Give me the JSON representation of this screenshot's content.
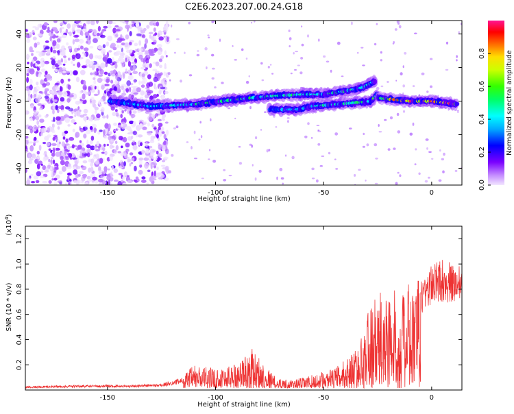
{
  "title": "C2E6.2023.207.00.24.G18",
  "chart_data": [
    {
      "type": "heatmap",
      "xlabel": "Height of straight line (km)",
      "ylabel": "Frequency (Hz)",
      "xlim": [
        -188,
        14
      ],
      "ylim": [
        -50,
        48
      ],
      "xticks": [
        -150,
        -100,
        -50,
        0
      ],
      "yticks": [
        -40,
        -20,
        0,
        20,
        40
      ],
      "colorbar": {
        "label": "Normalized spectral amplitude",
        "range": [
          0,
          1
        ],
        "ticks": [
          "0.0",
          "0.2",
          "0.4",
          "0.6",
          "0.8"
        ],
        "tick_values": [
          0.0,
          0.2,
          0.4,
          0.6,
          0.8
        ]
      },
      "traces": [
        {
          "x": [
            -149,
            -130,
            -110,
            -90,
            -75,
            -60,
            -50,
            -40,
            -32,
            -26
          ],
          "y": [
            0,
            -3,
            -2,
            1,
            3,
            4,
            4,
            6,
            8,
            12
          ],
          "amplitude": [
            0.35,
            0.4,
            0.5,
            0.55,
            0.5,
            0.5,
            0.55,
            0.55,
            0.5,
            0.4
          ]
        },
        {
          "x": [
            -75,
            -62,
            -55,
            -45,
            -35,
            -28,
            -25
          ],
          "y": [
            -5,
            -5,
            -3,
            -2,
            -1,
            0,
            4
          ],
          "amplitude": [
            0.35,
            0.4,
            0.45,
            0.5,
            0.5,
            0.55,
            0.6
          ]
        },
        {
          "x": [
            -25,
            -18,
            -10,
            0,
            6,
            12
          ],
          "y": [
            2,
            1,
            0,
            0,
            -1,
            -2
          ],
          "amplitude": [
            0.55,
            0.8,
            0.9,
            0.9,
            0.95,
            0.9
          ]
        }
      ]
    },
    {
      "type": "line",
      "xlabel": "Height of straight line (km)",
      "ylabel": "SNR (10 * v/v)",
      "yscale_label": "(x10",
      "yscale_exp": "4",
      "yscale_close": ")",
      "xlim": [
        -188,
        14
      ],
      "ylim": [
        0,
        1.3
      ],
      "xticks": [
        -150,
        -100,
        -50,
        0
      ],
      "yticks": [
        0.2,
        0.4,
        0.6,
        0.8,
        1.0,
        1.2
      ],
      "ytick_labels": [
        "0.2",
        "0.4",
        "0.6",
        "0.8",
        "1.0",
        "1.2"
      ],
      "color": "#ee3333",
      "envelope_x": [
        -188,
        -160,
        -140,
        -125,
        -115,
        -110,
        -100,
        -90,
        -83,
        -78,
        -72,
        -65,
        -55,
        -45,
        -38,
        -33,
        -30,
        -25,
        -20,
        -15,
        -10,
        -5,
        0,
        5,
        10,
        14
      ],
      "envelope_y": [
        0.03,
        0.04,
        0.04,
        0.05,
        0.1,
        0.18,
        0.15,
        0.2,
        0.3,
        0.2,
        0.08,
        0.06,
        0.1,
        0.15,
        0.25,
        0.35,
        0.6,
        0.7,
        0.8,
        0.7,
        0.8,
        0.85,
        0.95,
        1.0,
        0.95,
        1.0
      ]
    }
  ]
}
